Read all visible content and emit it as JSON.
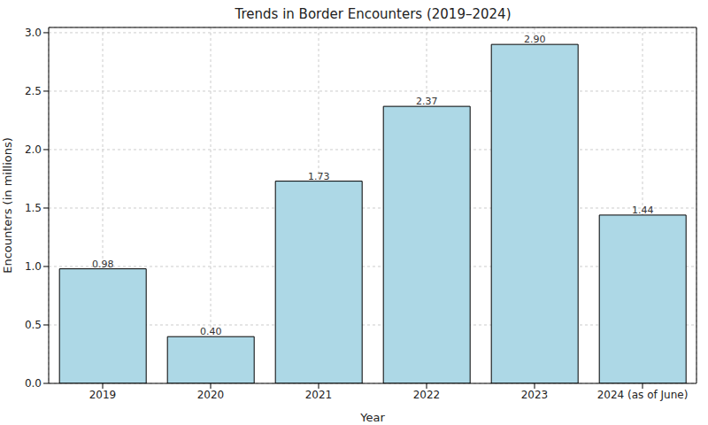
{
  "chart_data": {
    "type": "bar",
    "title": "Trends in Border Encounters (2019–2024)",
    "x_label": "Year",
    "y_label": "Encounters (in millions)",
    "categories": [
      "2019",
      "2020",
      "2021",
      "2022",
      "2023",
      "2024 (as of June)"
    ],
    "values": [
      0.98,
      0.4,
      1.73,
      2.37,
      2.9,
      1.44
    ],
    "value_labels": [
      "0.98",
      "0.40",
      "1.73",
      "2.37",
      "2.90",
      "1.44"
    ],
    "data_labels": true,
    "color": "#add8e6",
    "ylim": [
      0,
      3.045
    ],
    "yticks": [
      {
        "value": 0,
        "label": "0.0"
      },
      0.5,
      {
        "value": 1,
        "label": "1.0"
      },
      1.5,
      {
        "value": 2,
        "label": "2.0"
      },
      2.5,
      {
        "value": 3,
        "label": "3.0"
      }
    ],
    "grid": true
  }
}
